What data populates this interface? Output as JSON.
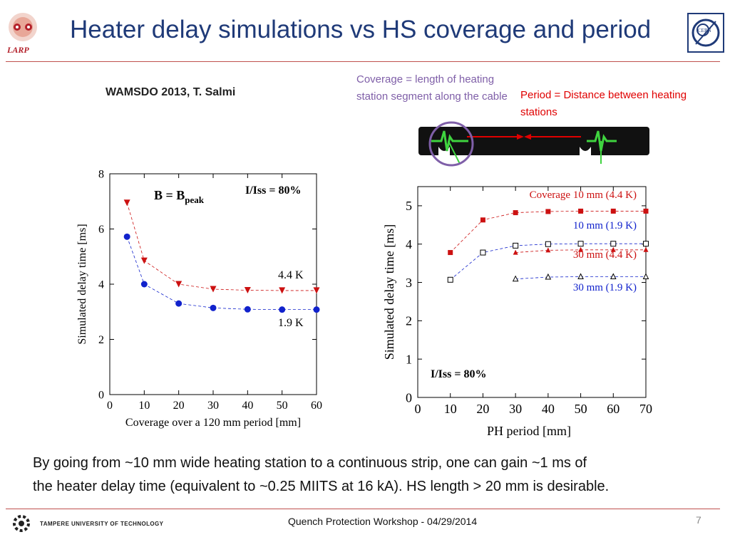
{
  "slide": {
    "title": "Heater delay simulations vs HS coverage and period",
    "author": "WAMSDO 2013, T. Salmi",
    "coverage_note": "Coverage = length of heating station segment along the cable",
    "period_note": "Period = Distance between heating stations",
    "bottom_text_1": "By going from ~10 mm wide heating station to a continuous strip, one can gain  ~1 ms of",
    "bottom_text_2": "the heater delay time (equivalent to ~0.25 MIITS at 16 kA). HS length > 20 mm is desirable.",
    "footer": "Quench Protection Workshop - 04/29/2014",
    "page_number": "7",
    "larp_label": "LARP",
    "cern_label": "CERN",
    "tut_label": "TAMPERE UNIVERSITY OF TECHNOLOGY",
    "colors": {
      "title": "#1f3a78",
      "red": "#cc1111",
      "blue": "#1122cc",
      "rule": "#c0504d",
      "purple": "#7f5fa8"
    }
  },
  "chart_data": [
    {
      "type": "line",
      "xlabel": "Coverage over a 120 mm period [mm]",
      "ylabel": "Simulated delay time [ms]",
      "xlim": [
        0,
        60
      ],
      "ylim": [
        0,
        8
      ],
      "xticks": [
        "0",
        "10",
        "20",
        "30",
        "40",
        "50",
        "60"
      ],
      "yticks": [
        "0",
        "2",
        "4",
        "6",
        "8"
      ],
      "annotation_b_main": "B = B",
      "annotation_b_sub": "peak",
      "annotation_ratio": "I/Iss = 80%",
      "series": [
        {
          "name": "4.4 K",
          "marker": "triangle-down",
          "color": "#cc1111",
          "x": [
            5,
            10,
            20,
            30,
            40,
            50,
            60
          ],
          "y": [
            6.95,
            4.85,
            4.0,
            3.82,
            3.78,
            3.77,
            3.77
          ]
        },
        {
          "name": "1.9 K",
          "marker": "circle",
          "color": "#1122cc",
          "x": [
            5,
            10,
            20,
            30,
            40,
            50,
            60
          ],
          "y": [
            5.72,
            4.0,
            3.3,
            3.14,
            3.09,
            3.08,
            3.08
          ]
        }
      ]
    },
    {
      "type": "line",
      "xlabel": "PH period [mm]",
      "ylabel": "Simulated delay time [ms]",
      "xlim": [
        0,
        70
      ],
      "ylim": [
        0,
        5.5
      ],
      "xticks": [
        "0",
        "10",
        "20",
        "30",
        "40",
        "50",
        "60",
        "70"
      ],
      "yticks": [
        "0",
        "1",
        "2",
        "3",
        "4",
        "5"
      ],
      "annotation_ratio": "I/Iss = 80%",
      "series": [
        {
          "name": "Coverage 10 mm (4.4 K)",
          "marker": "square-filled",
          "color": "#cc1111",
          "x": [
            10,
            20,
            30,
            40,
            50,
            60,
            70
          ],
          "y": [
            3.78,
            4.63,
            4.82,
            4.85,
            4.86,
            4.86,
            4.86
          ]
        },
        {
          "name": "10 mm (1.9 K)",
          "marker": "square-open",
          "color": "#1122cc",
          "x": [
            10,
            20,
            30,
            40,
            50,
            60,
            70
          ],
          "y": [
            3.07,
            3.78,
            3.96,
            4.0,
            4.01,
            4.01,
            4.01
          ]
        },
        {
          "name": "30 mm (4.4 K)",
          "marker": "triangle-filled",
          "color": "#cc1111",
          "x": [
            30,
            40,
            50,
            60,
            70
          ],
          "y": [
            3.78,
            3.84,
            3.85,
            3.85,
            3.85
          ]
        },
        {
          "name": "30 mm (1.9 K)",
          "marker": "triangle-open",
          "color": "#1122cc",
          "x": [
            30,
            40,
            50,
            60,
            70
          ],
          "y": [
            3.09,
            3.14,
            3.15,
            3.15,
            3.15
          ]
        }
      ]
    }
  ]
}
